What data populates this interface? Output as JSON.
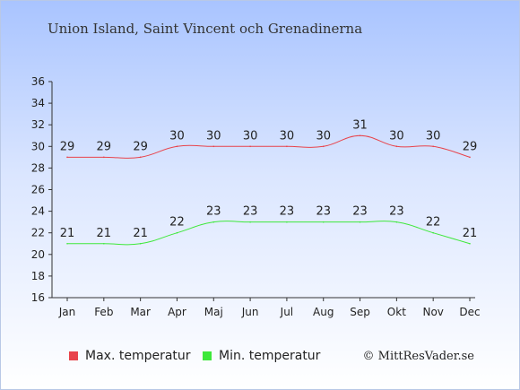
{
  "title": "Union Island, Saint Vincent och Grenadinerna",
  "copyright": "© MittResVader.se",
  "legend": {
    "max_label": "Max. temperatur",
    "min_label": "Min. temperatur"
  },
  "colors": {
    "max": "#e8434b",
    "min": "#3ee83a"
  },
  "chart_data": {
    "type": "line",
    "categories": [
      "Jan",
      "Feb",
      "Mar",
      "Apr",
      "Maj",
      "Jun",
      "Jul",
      "Aug",
      "Sep",
      "Okt",
      "Nov",
      "Dec"
    ],
    "series": [
      {
        "name": "Max. temperatur",
        "values": [
          29,
          29,
          29,
          30,
          30,
          30,
          30,
          30,
          31,
          30,
          30,
          29
        ]
      },
      {
        "name": "Min. temperatur",
        "values": [
          21,
          21,
          21,
          22,
          23,
          23,
          23,
          23,
          23,
          23,
          22,
          21
        ]
      }
    ],
    "ylim": [
      16,
      36
    ],
    "yticks": [
      16,
      18,
      20,
      22,
      24,
      26,
      28,
      30,
      32,
      34,
      36
    ],
    "grid": false,
    "legend_position": "bottom"
  }
}
